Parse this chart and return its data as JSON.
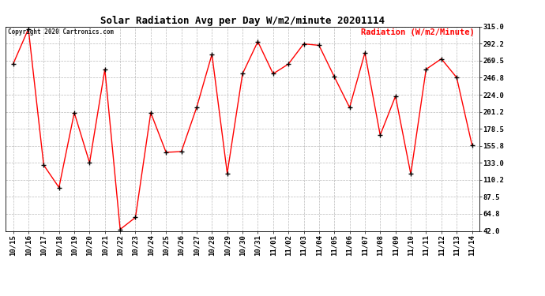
{
  "title": "Solar Radiation Avg per Day W/m2/minute 20201114",
  "copyright_text": "Copyright 2020 Cartronics.com",
  "legend_label": "Radiation (W/m2/Minute)",
  "line_color": "red",
  "marker_color": "black",
  "background_color": "#ffffff",
  "grid_color": "#aaaaaa",
  "dates": [
    "10/15",
    "10/16",
    "10/17",
    "10/18",
    "10/19",
    "10/20",
    "10/21",
    "10/22",
    "10/23",
    "10/24",
    "10/25",
    "10/26",
    "10/27",
    "10/28",
    "10/29",
    "10/30",
    "10/31",
    "11/01",
    "11/02",
    "11/03",
    "11/04",
    "11/05",
    "11/06",
    "11/07",
    "11/08",
    "11/09",
    "11/10",
    "11/11",
    "11/12",
    "11/13",
    "11/14"
  ],
  "values": [
    265.0,
    312.0,
    130.0,
    100.0,
    200.0,
    133.0,
    258.0,
    44.0,
    60.0,
    200.0,
    147.0,
    148.0,
    207.0,
    278.0,
    119.0,
    252.0,
    295.0,
    252.0,
    265.0,
    292.0,
    290.0,
    248.0,
    207.0,
    280.0,
    170.0,
    222.0,
    118.0,
    258.0,
    272.0,
    247.0,
    157.0
  ],
  "ytick_values": [
    42.0,
    64.8,
    87.5,
    110.2,
    133.0,
    155.8,
    178.5,
    201.2,
    224.0,
    246.8,
    269.5,
    292.2,
    315.0
  ],
  "ytick_labels": [
    "42.0",
    "64.8",
    "87.5",
    "110.2",
    "133.0",
    "155.8",
    "178.5",
    "201.2",
    "224.0",
    "246.8",
    "269.5",
    "292.2",
    "315.0"
  ],
  "ylim": [
    42.0,
    315.0
  ],
  "title_fontsize": 9,
  "tick_fontsize": 6.5,
  "legend_fontsize": 7.5,
  "copyright_fontsize": 5.5,
  "linewidth": 1.0,
  "markersize": 4,
  "markeredgewidth": 1.0
}
